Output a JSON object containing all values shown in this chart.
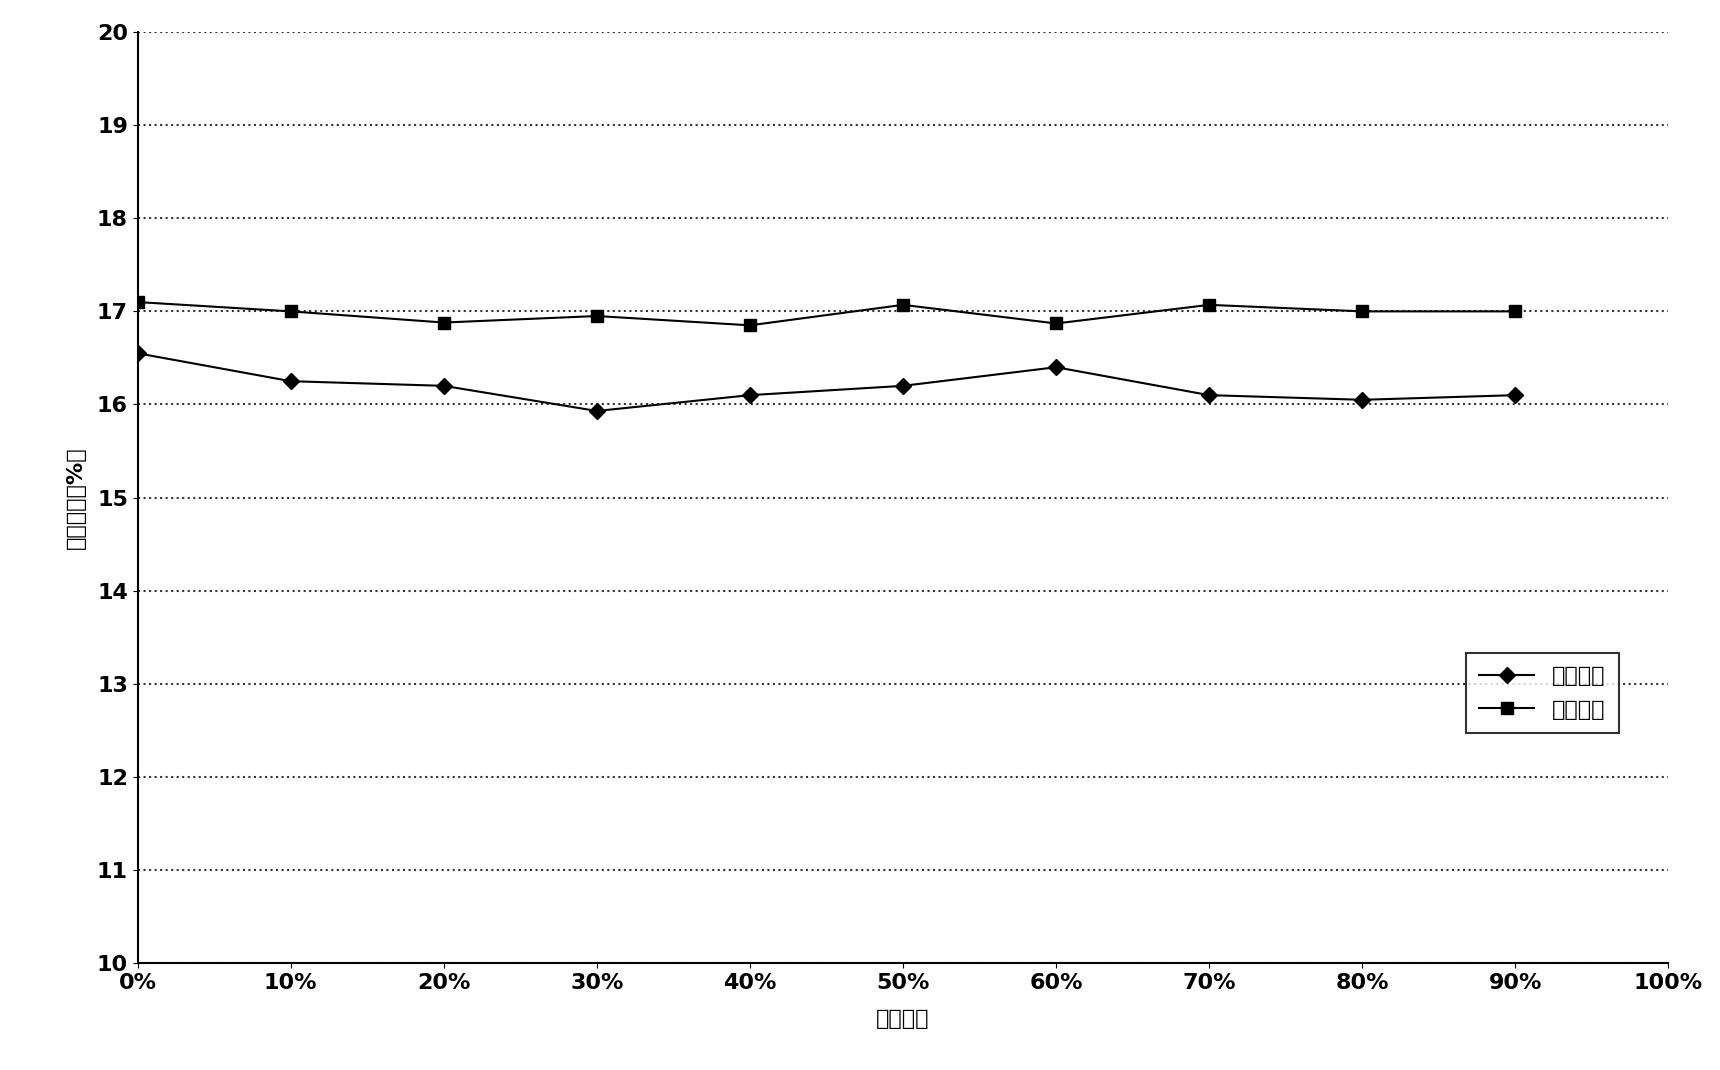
{
  "x_values": [
    0,
    10,
    20,
    30,
    40,
    50,
    60,
    70,
    80,
    90
  ],
  "series1_name": "对比例一",
  "series1_values": [
    16.55,
    16.25,
    16.2,
    15.93,
    16.1,
    16.2,
    16.4,
    16.1,
    16.05,
    16.1
  ],
  "series2_name": "实施例一",
  "series2_values": [
    17.1,
    17.0,
    16.88,
    16.95,
    16.85,
    17.07,
    16.87,
    17.07,
    17.0,
    17.0
  ],
  "xlabel": "凝固分率",
  "ylabel": "转换效率（%）",
  "ylim": [
    10,
    20
  ],
  "xlim": [
    0,
    100
  ],
  "yticks": [
    10,
    11,
    12,
    13,
    14,
    15,
    16,
    17,
    18,
    19,
    20
  ],
  "xtick_labels": [
    "0%",
    "10%",
    "20%",
    "30%",
    "40%",
    "50%",
    "60%",
    "70%",
    "80%",
    "90%",
    "100%"
  ],
  "xtick_values": [
    0,
    10,
    20,
    30,
    40,
    50,
    60,
    70,
    80,
    90,
    100
  ],
  "line_color": "#000000",
  "marker1": "D",
  "marker2": "s",
  "background_color": "#ffffff",
  "legend_fontsize": 16,
  "axis_fontsize": 16,
  "tick_fontsize": 16
}
